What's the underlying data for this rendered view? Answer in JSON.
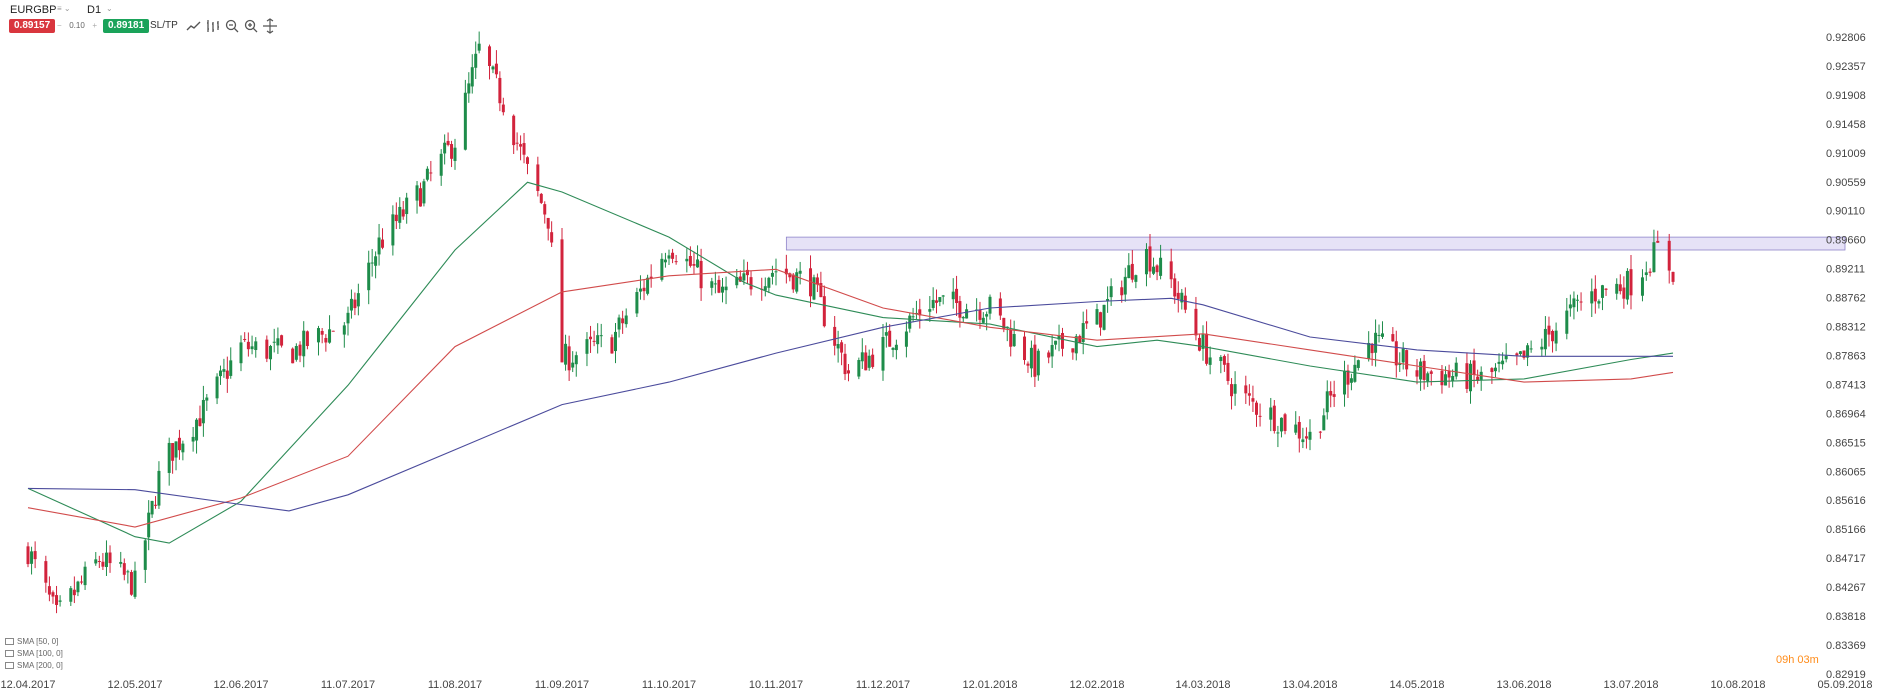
{
  "toolbar": {
    "symbol": "EURGBP",
    "timeframe": "D1",
    "sell_price": "0.89157",
    "buy_price": "0.89181",
    "quantity": "0.10",
    "qty_minus": "−",
    "qty_plus": "+",
    "sltp_label": "SL/TP",
    "icons": [
      "line-chart-icon",
      "bar-chart-icon",
      "zoom-out-icon",
      "zoom-in-icon",
      "crosshair-icon"
    ]
  },
  "indicators": [
    "SMA [50, 0]",
    "SMA [100, 0]",
    "SMA [200, 0]"
  ],
  "timer": "09h 03m",
  "colors": {
    "bull": "#1e8c4a",
    "bear": "#d2233c",
    "sma50": "#2e8b57",
    "sma100": "#d14b4b",
    "sma200": "#4b4b9c",
    "zone": "#e6e2f7"
  },
  "chart_data": {
    "type": "candlestick",
    "symbol": "EURGBP",
    "timeframe": "D1",
    "y_ticks": [
      "0.92806",
      "0.92357",
      "0.91908",
      "0.91458",
      "0.91009",
      "0.90559",
      "0.90110",
      "0.89660",
      "0.89211",
      "0.88762",
      "0.88312",
      "0.87863",
      "0.87413",
      "0.86964",
      "0.86515",
      "0.86065",
      "0.85616",
      "0.85166",
      "0.84717",
      "0.84267",
      "0.83818",
      "0.83369",
      "0.82919"
    ],
    "ylim": [
      0.82919,
      0.92806
    ],
    "x_ticks": [
      "12.04.2017",
      "12.05.2017",
      "12.06.2017",
      "11.07.2017",
      "11.08.2017",
      "11.09.2017",
      "11.10.2017",
      "10.11.2017",
      "11.12.2017",
      "12.01.2018",
      "12.02.2018",
      "14.03.2018",
      "13.04.2018",
      "14.05.2018",
      "13.06.2018",
      "13.07.2018",
      "10.08.2018",
      "05.09.2018"
    ],
    "close_path": [
      [
        "12.04.2017",
        0.8485
      ],
      [
        "20.04.2017",
        0.838
      ],
      [
        "02.05.2017",
        0.847
      ],
      [
        "12.05.2017",
        0.843
      ],
      [
        "20.05.2017",
        0.862
      ],
      [
        "01.06.2017",
        0.87
      ],
      [
        "12.06.2017",
        0.88
      ],
      [
        "25.06.2017",
        0.879
      ],
      [
        "11.07.2017",
        0.884
      ],
      [
        "20.07.2017",
        0.896
      ],
      [
        "01.08.2017",
        0.904
      ],
      [
        "11.08.2017",
        0.912
      ],
      [
        "18.08.2017",
        0.926
      ],
      [
        "25.08.2017",
        0.918
      ],
      [
        "01.09.2017",
        0.907
      ],
      [
        "07.09.2017",
        0.9
      ],
      [
        "11.09.2017",
        0.878
      ],
      [
        "25.09.2017",
        0.881
      ],
      [
        "11.10.2017",
        0.896
      ],
      [
        "25.10.2017",
        0.888
      ],
      [
        "10.11.2017",
        0.892
      ],
      [
        "20.11.2017",
        0.89
      ],
      [
        "01.12.2017",
        0.876
      ],
      [
        "11.12.2017",
        0.88
      ],
      [
        "25.12.2017",
        0.887
      ],
      [
        "12.01.2018",
        0.886
      ],
      [
        "25.01.2018",
        0.877
      ],
      [
        "12.02.2018",
        0.884
      ],
      [
        "25.02.2018",
        0.895
      ],
      [
        "05.03.2018",
        0.89
      ],
      [
        "14.03.2018",
        0.88
      ],
      [
        "25.03.2018",
        0.872
      ],
      [
        "13.04.2018",
        0.866
      ],
      [
        "20.04.2018",
        0.873
      ],
      [
        "01.05.2018",
        0.881
      ],
      [
        "14.05.2018",
        0.876
      ],
      [
        "01.06.2018",
        0.875
      ],
      [
        "13.06.2018",
        0.878
      ],
      [
        "01.07.2018",
        0.888
      ],
      [
        "13.07.2018",
        0.89
      ],
      [
        "20.07.2018",
        0.895
      ],
      [
        "24.07.2018",
        0.8917
      ]
    ],
    "series": [
      {
        "name": "SMA [50, 0]",
        "values": [
          [
            "12.04.2017",
            0.858
          ],
          [
            "12.05.2017",
            0.8505
          ],
          [
            "22.05.2017",
            0.8495
          ],
          [
            "12.06.2017",
            0.856
          ],
          [
            "11.07.2017",
            0.874
          ],
          [
            "11.08.2017",
            0.895
          ],
          [
            "01.09.2017",
            0.9055
          ],
          [
            "11.09.2017",
            0.904
          ],
          [
            "11.10.2017",
            0.897
          ],
          [
            "01.11.2017",
            0.89
          ],
          [
            "10.11.2017",
            0.888
          ],
          [
            "11.12.2017",
            0.8845
          ],
          [
            "12.01.2018",
            0.8835
          ],
          [
            "12.02.2018",
            0.88
          ],
          [
            "01.03.2018",
            0.881
          ],
          [
            "14.03.2018",
            0.88
          ],
          [
            "13.04.2018",
            0.877
          ],
          [
            "14.05.2018",
            0.8745
          ],
          [
            "13.06.2018",
            0.875
          ],
          [
            "13.07.2018",
            0.878
          ],
          [
            "24.07.2018",
            0.879
          ]
        ]
      },
      {
        "name": "SMA [100, 0]",
        "values": [
          [
            "12.04.2017",
            0.855
          ],
          [
            "12.05.2017",
            0.852
          ],
          [
            "12.06.2017",
            0.8565
          ],
          [
            "11.07.2017",
            0.863
          ],
          [
            "11.08.2017",
            0.88
          ],
          [
            "11.09.2017",
            0.8885
          ],
          [
            "11.10.2017",
            0.891
          ],
          [
            "10.11.2017",
            0.892
          ],
          [
            "11.12.2017",
            0.886
          ],
          [
            "12.01.2018",
            0.883
          ],
          [
            "12.02.2018",
            0.881
          ],
          [
            "14.03.2018",
            0.882
          ],
          [
            "13.04.2018",
            0.8795
          ],
          [
            "14.05.2018",
            0.877
          ],
          [
            "13.06.2018",
            0.8745
          ],
          [
            "13.07.2018",
            0.875
          ],
          [
            "24.07.2018",
            0.876
          ]
        ]
      },
      {
        "name": "SMA [200, 0]",
        "values": [
          [
            "12.04.2017",
            0.858
          ],
          [
            "12.05.2017",
            0.8578
          ],
          [
            "12.06.2017",
            0.8555
          ],
          [
            "25.06.2017",
            0.8545
          ],
          [
            "11.07.2017",
            0.857
          ],
          [
            "11.08.2017",
            0.864
          ],
          [
            "11.09.2017",
            0.871
          ],
          [
            "11.10.2017",
            0.8745
          ],
          [
            "10.11.2017",
            0.879
          ],
          [
            "11.12.2017",
            0.883
          ],
          [
            "12.01.2018",
            0.886
          ],
          [
            "12.02.2018",
            0.887
          ],
          [
            "05.03.2018",
            0.8875
          ],
          [
            "14.03.2018",
            0.8865
          ],
          [
            "13.04.2018",
            0.8815
          ],
          [
            "14.05.2018",
            0.8795
          ],
          [
            "13.06.2018",
            0.8785
          ],
          [
            "13.07.2018",
            0.8785
          ],
          [
            "24.07.2018",
            0.8785
          ]
        ]
      }
    ],
    "resistance_zone": {
      "from": "13.11.2017",
      "to": "05.09.2018",
      "low": 0.895,
      "high": 0.897
    },
    "grid": false
  }
}
